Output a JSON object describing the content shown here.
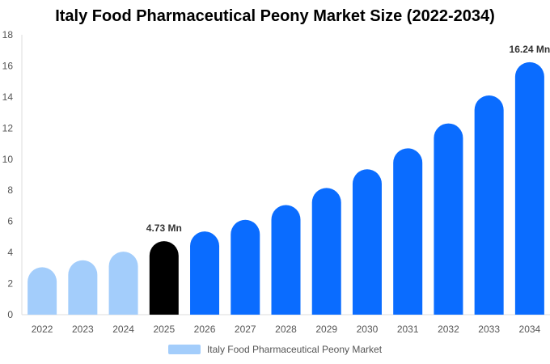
{
  "chart_data": {
    "type": "bar",
    "title": "Italy Food Pharmaceutical Peony Market Size (2022-2034)",
    "categories": [
      "2022",
      "2023",
      "2024",
      "2025",
      "2026",
      "2027",
      "2028",
      "2029",
      "2030",
      "2031",
      "2032",
      "2033",
      "2034"
    ],
    "series": [
      {
        "name": "Italy Food Pharmaceutical Peony Market",
        "values": [
          3.05,
          3.5,
          4.05,
          4.73,
          5.35,
          6.1,
          7.05,
          8.15,
          9.35,
          10.7,
          12.3,
          14.1,
          16.24
        ]
      }
    ],
    "bar_colors": [
      "#a3cdfb",
      "#a3cdfb",
      "#a3cdfb",
      "#000000",
      "#0a6cff",
      "#0a6cff",
      "#0a6cff",
      "#0a6cff",
      "#0a6cff",
      "#0a6cff",
      "#0a6cff",
      "#0a6cff",
      "#0a6cff"
    ],
    "data_labels": [
      {
        "index": 3,
        "text": "4.73 Mn"
      },
      {
        "index": 12,
        "text": "16.24 Mn"
      }
    ],
    "yticks": [
      "0",
      "2",
      "4",
      "6",
      "8",
      "10",
      "12",
      "14",
      "16",
      "18"
    ],
    "ylim": [
      0,
      18
    ],
    "legend_position": "bottom",
    "grid": false,
    "xlabel": "",
    "ylabel": ""
  }
}
